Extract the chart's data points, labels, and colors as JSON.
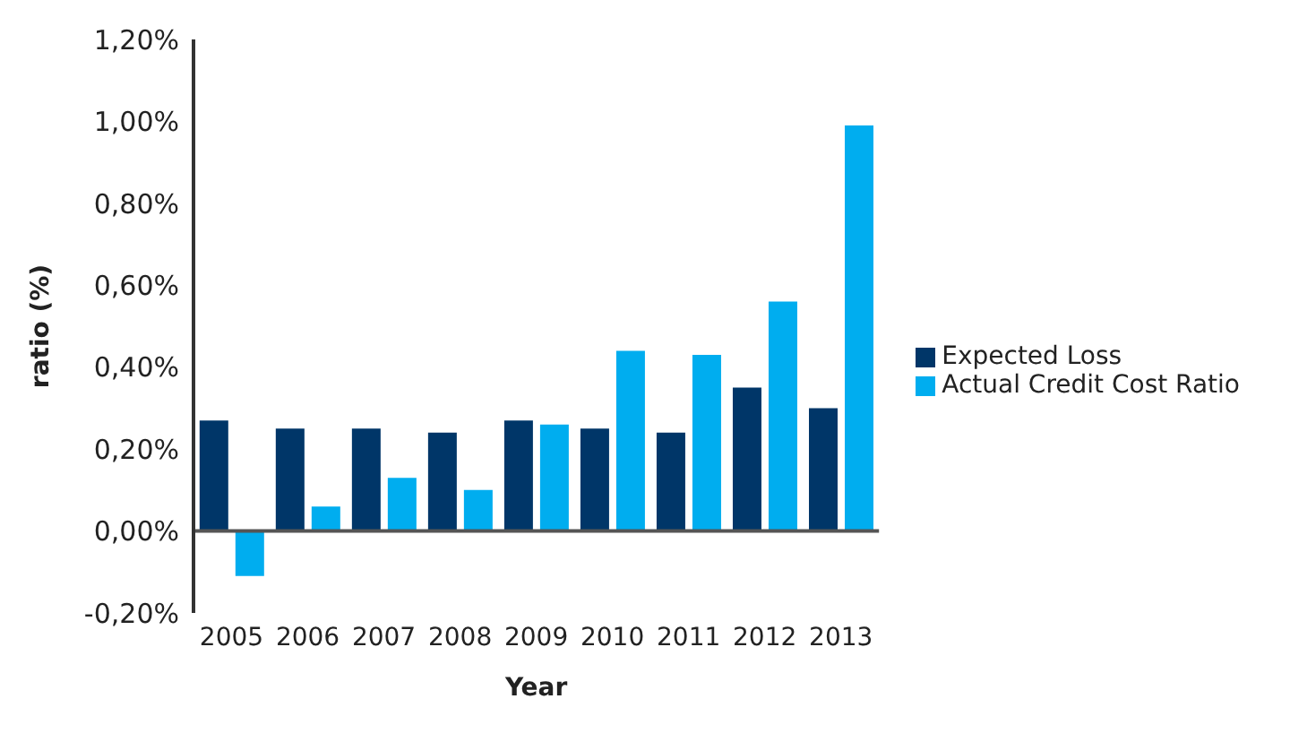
{
  "chart_data": {
    "type": "bar",
    "xlabel": "Year",
    "ylabel": "ratio (%)",
    "categories": [
      "2005",
      "2006",
      "2007",
      "2008",
      "2009",
      "2010",
      "2011",
      "2012",
      "2013"
    ],
    "series": [
      {
        "name": "Expected Loss",
        "color": "#003668",
        "values": [
          0.27,
          0.25,
          0.25,
          0.24,
          0.27,
          0.25,
          0.24,
          0.35,
          0.3
        ]
      },
      {
        "name": "Actual Credit Cost Ratio",
        "color": "#00adef",
        "values": [
          -0.11,
          0.06,
          0.13,
          0.1,
          0.26,
          0.44,
          0.43,
          0.56,
          0.99
        ]
      }
    ],
    "ylim": [
      -0.2,
      1.2
    ],
    "yticks": [
      {
        "value": -0.2,
        "label": "-0,20%"
      },
      {
        "value": 0,
        "label": "0,00%"
      },
      {
        "value": 0.2,
        "label": "0,20%"
      },
      {
        "value": 0.4,
        "label": "0,40%"
      },
      {
        "value": 0.6,
        "label": "0,60%"
      },
      {
        "value": 0.8,
        "label": "0,80%"
      },
      {
        "value": 1.0,
        "label": "1,00%"
      },
      {
        "value": 1.2,
        "label": "1,20%"
      }
    ],
    "ref_lines": [
      {
        "axis": "y",
        "value": 0,
        "color": "#555555"
      }
    ],
    "grid": false,
    "legend": "right"
  }
}
